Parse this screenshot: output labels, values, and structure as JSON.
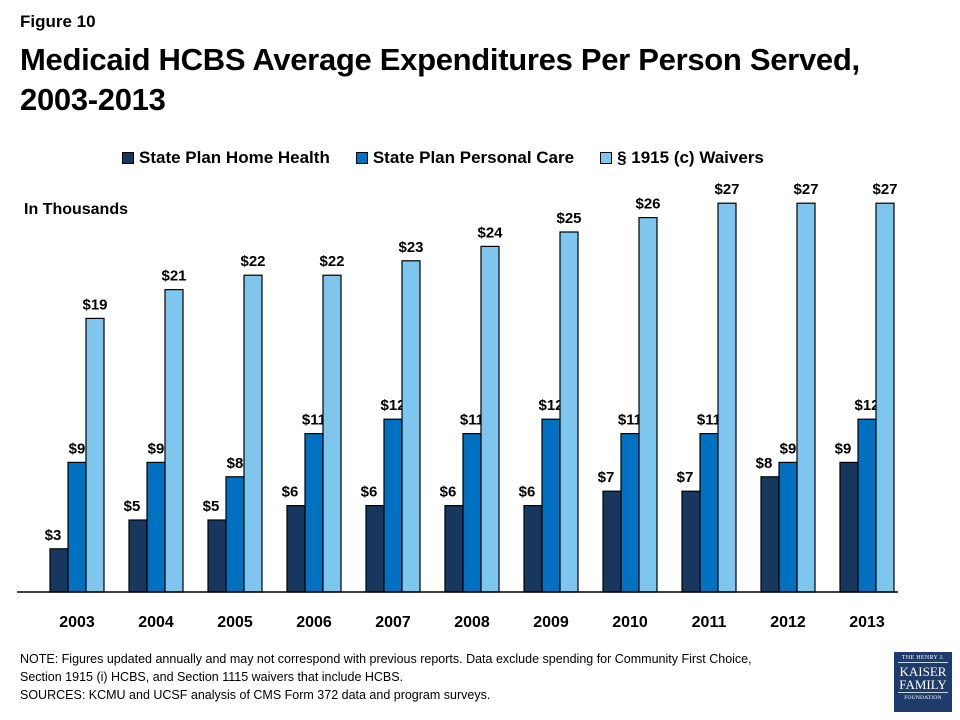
{
  "figure_label": "Figure 10",
  "footnote": {
    "note_line1": "NOTE: Figures updated annually and may not correspond with previous reports.  Data exclude spending for Community First Choice,",
    "note_line2": "Section 1915 (i) HCBS, and Section 1115 waivers that include HCBS.",
    "sources": "SOURCES: KCMU and UCSF analysis of CMS Form 372 data and program surveys."
  },
  "logo": {
    "line1": "THE HENRY J.",
    "line2": "KAISER",
    "line3": "FAMILY",
    "line4": "FOUNDATION"
  },
  "chart_data": {
    "type": "bar",
    "title": "Medicaid HCBS Average Expenditures Per Person Served, 2003-2013",
    "unit_label": "In Thousands",
    "xlabel": "",
    "ylabel": "",
    "ylim": [
      0,
      28
    ],
    "grid": false,
    "legend_position": "top",
    "value_prefix": "$",
    "categories": [
      "2003",
      "2004",
      "2005",
      "2006",
      "2007",
      "2008",
      "2009",
      "2010",
      "2011",
      "2012",
      "2013"
    ],
    "series": [
      {
        "name": "State Plan Home Health",
        "color": "#17375e",
        "values": [
          3,
          5,
          5,
          6,
          6,
          6,
          6,
          7,
          7,
          8,
          9
        ]
      },
      {
        "name": "State Plan Personal Care",
        "color": "#0070c0",
        "values": [
          9,
          9,
          8,
          11,
          12,
          11,
          12,
          11,
          11,
          9,
          12
        ]
      },
      {
        "name": "§ 1915 (c) Waivers",
        "color": "#7fc6ee",
        "values": [
          19,
          21,
          22,
          22,
          23,
          24,
          25,
          26,
          27,
          27,
          27
        ]
      }
    ]
  }
}
